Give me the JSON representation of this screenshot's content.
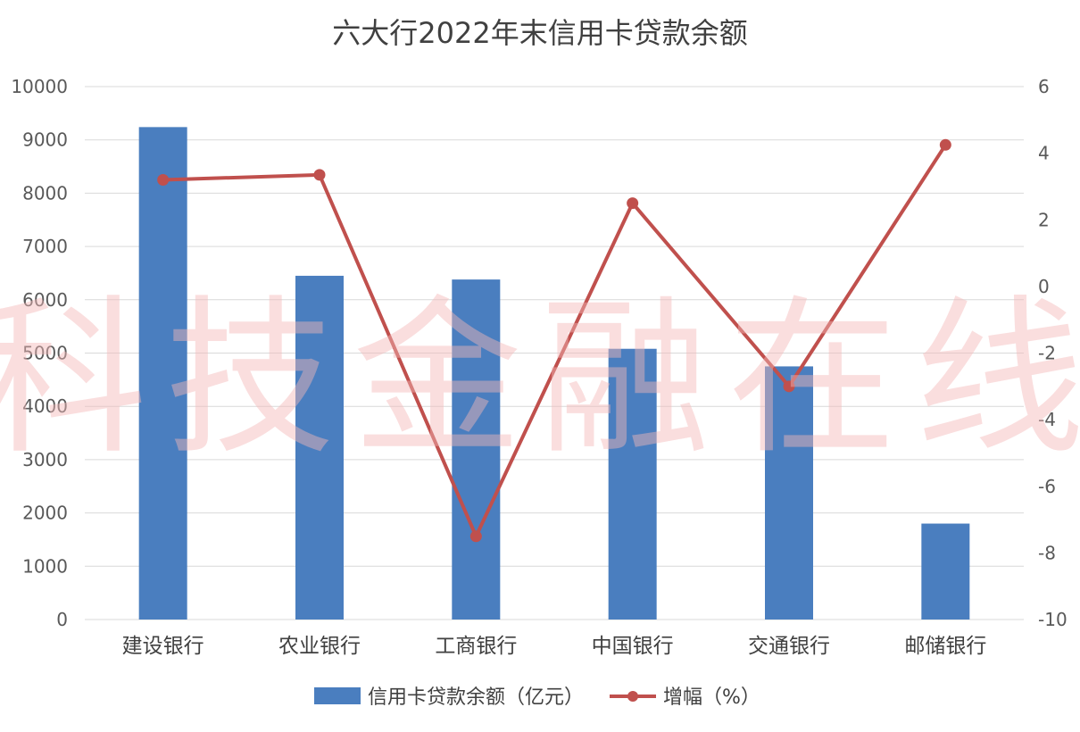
{
  "watermark": "科技金融在线",
  "chart_data": {
    "type": "bar",
    "title": "六大行2022年末信用卡贷款余额",
    "categories": [
      "建设银行",
      "农业银行",
      "工商银行",
      "中国银行",
      "交通银行",
      "邮储银行"
    ],
    "series": [
      {
        "name": "信用卡贷款余额（亿元）",
        "type": "bar",
        "axis": "left",
        "color": "#4a7ebf",
        "values": [
          9240,
          6450,
          6380,
          5080,
          4750,
          1800
        ]
      },
      {
        "name": "增幅（%）",
        "type": "line",
        "axis": "right",
        "color": "#c0504d",
        "values": [
          3.2,
          3.35,
          -7.5,
          2.5,
          -3.0,
          4.25
        ]
      }
    ],
    "ylim_left": [
      0,
      10000
    ],
    "yticks_left": [
      "0",
      "1000",
      "2000",
      "3000",
      "4000",
      "5000",
      "6000",
      "7000",
      "8000",
      "9000",
      "10000"
    ],
    "ylim_right": [
      -10,
      6
    ],
    "yticks_right": [
      "-10",
      "-8",
      "-6",
      "-4",
      "-2",
      "0",
      "2",
      "4",
      "6"
    ],
    "grid": true,
    "legend_position": "bottom"
  }
}
